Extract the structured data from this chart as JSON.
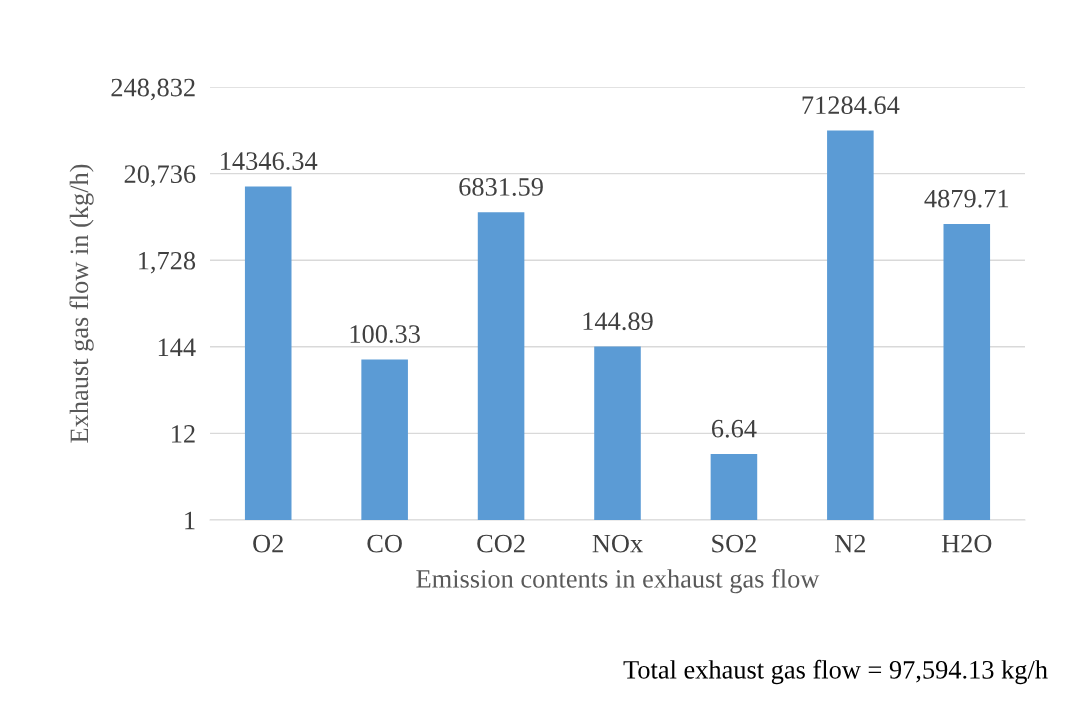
{
  "chart_data": {
    "type": "bar",
    "xlabel": "Emission contents in exhaust gas flow",
    "ylabel": "Exhaust gas flow in (kg/h)",
    "categories": [
      "O2",
      "CO",
      "CO2",
      "NOx",
      "SO2",
      "N2",
      "H2O"
    ],
    "values": [
      14346.34,
      100.33,
      6831.59,
      144.89,
      6.64,
      71284.64,
      4879.71
    ],
    "color": "#5b9bd5",
    "data_labels": true,
    "log": "y",
    "grid": "y",
    "ylim": [
      1,
      248832
    ],
    "yticks": [
      1,
      12,
      144,
      {
        "value": 1728,
        "label": "1,728"
      },
      {
        "value": 20736,
        "label": "20,736"
      },
      {
        "value": 248832,
        "label": "248,832"
      }
    ],
    "annotations": [
      "Total exhaust gas flow = 97,594.13 kg/h"
    ]
  }
}
